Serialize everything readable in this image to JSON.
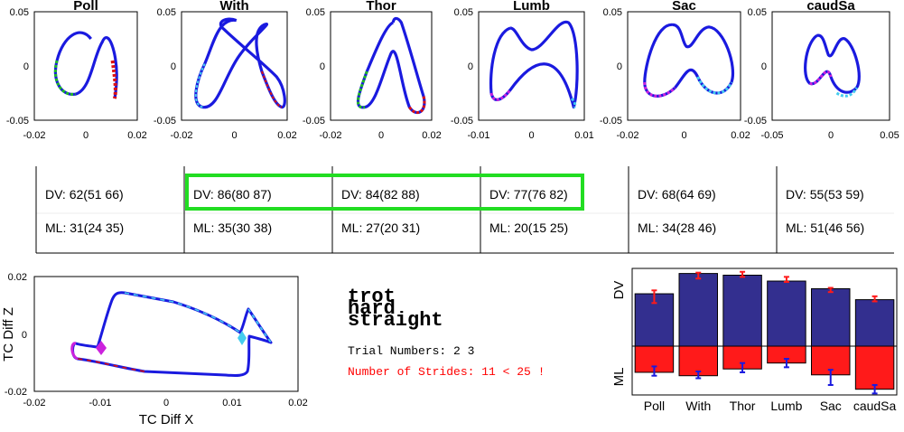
{
  "colors": {
    "trace": "#1a1adf",
    "dv_bar": "#332f8f",
    "ml_bar": "#ff1a1a",
    "highlight_box": "#22dd22",
    "error_text": "#ff0000",
    "seg_green": "#22bb22",
    "seg_red": "#dd1111",
    "seg_magenta": "#cc22dd",
    "seg_cyan": "#44ccee"
  },
  "trajectory_panels": [
    {
      "title": "Poll",
      "xticks": [
        "-0.02",
        "0",
        "0.02"
      ],
      "yticks": [
        "0.05",
        "0",
        "-0.05"
      ]
    },
    {
      "title": "With",
      "xticks": [
        "-0.02",
        "0",
        "0.02"
      ],
      "yticks": [
        "0.05",
        "0",
        "-0.05"
      ]
    },
    {
      "title": "Thor",
      "xticks": [
        "-0.02",
        "0",
        "0.02"
      ],
      "yticks": [
        "0.05",
        "0",
        "-0.05"
      ]
    },
    {
      "title": "Lumb",
      "xticks": [
        "-0.01",
        "0",
        "0.01"
      ],
      "yticks": [
        "0.05",
        "0",
        "-0.05"
      ]
    },
    {
      "title": "Sac",
      "xticks": [
        "-0.02",
        "0",
        "0.02"
      ],
      "yticks": [
        "0.05",
        "0",
        "-0.05"
      ]
    },
    {
      "title": "caudSa",
      "xticks": [
        "-0.05",
        "0",
        "0.05"
      ],
      "yticks": [
        "0.05",
        "0",
        "-0.05"
      ]
    }
  ],
  "stats_boxes": [
    {
      "dv": "DV: 62(51 66)",
      "ml": "ML: 31(24 35)"
    },
    {
      "dv": "DV: 86(80 87)",
      "ml": "ML: 35(30 38)"
    },
    {
      "dv": "DV: 84(82 88)",
      "ml": "ML: 27(20 31)"
    },
    {
      "dv": "DV: 77(76 82)",
      "ml": "ML: 20(15 25)"
    },
    {
      "dv": "DV: 68(64 69)",
      "ml": "ML: 34(28 46)"
    },
    {
      "dv": "DV: 55(53 59)",
      "ml": "ML: 51(46 56)"
    }
  ],
  "tc_plot": {
    "xlabel": "TC Diff X",
    "ylabel": "TC Diff Z",
    "xticks": [
      "-0.02",
      "-0.01",
      "0",
      "0.01",
      "0.02"
    ],
    "yticks": [
      "0.02",
      "0",
      "-0.02"
    ],
    "xlim": [
      -0.02,
      0.02
    ],
    "ylim": [
      -0.02,
      0.02
    ]
  },
  "info": {
    "condition_lines": [
      "trot",
      "hard",
      "straight"
    ],
    "trial_numbers": "Trial Numbers: 2 3",
    "strides": "Number of Strides: 11 < 25 !"
  },
  "chart_data": {
    "type": "bar",
    "categories": [
      "Poll",
      "With",
      "Thor",
      "Lumb",
      "Sac",
      "caudSa"
    ],
    "series": [
      {
        "name": "DV",
        "values": [
          62,
          86,
          84,
          77,
          68,
          55
        ],
        "ci_low": [
          51,
          80,
          82,
          76,
          64,
          53
        ],
        "ci_high": [
          66,
          87,
          88,
          82,
          69,
          59
        ]
      },
      {
        "name": "ML",
        "values": [
          31,
          35,
          27,
          20,
          34,
          51
        ],
        "ci_low": [
          24,
          30,
          20,
          15,
          28,
          46
        ],
        "ci_high": [
          35,
          38,
          31,
          25,
          46,
          56
        ]
      }
    ],
    "ylabel_top": "DV",
    "ylabel_bottom": "ML",
    "ylim": [
      -60,
      90
    ]
  }
}
